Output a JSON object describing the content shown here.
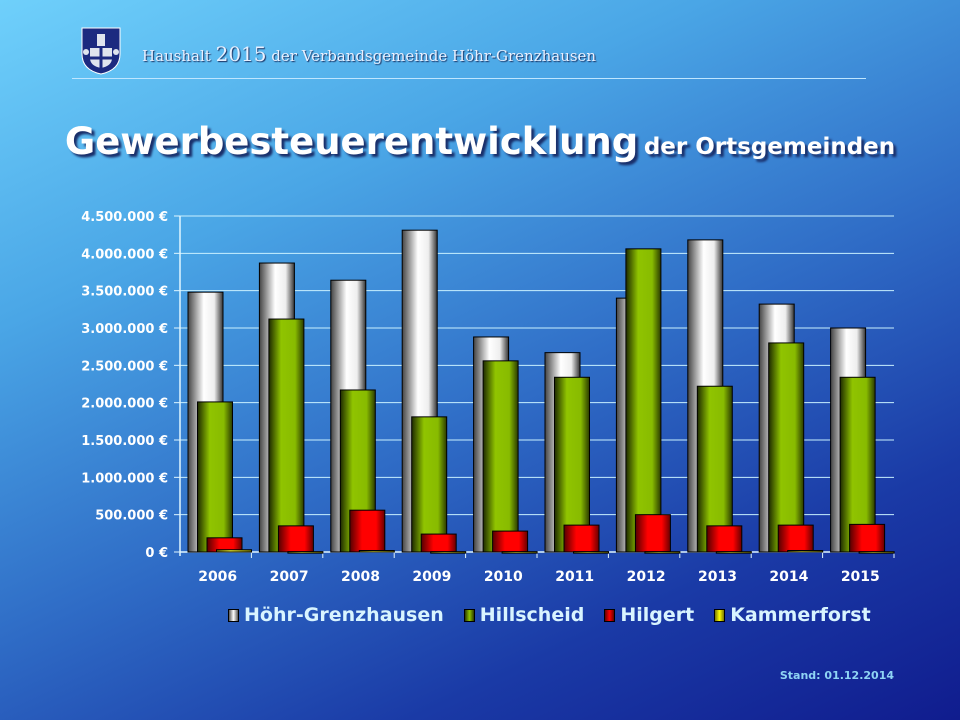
{
  "header": {
    "prefix": "Haushalt",
    "year": "2015",
    "suffix": "der Verbandsgemeinde Höhr-Grenzhausen"
  },
  "title": {
    "main": "Gewerbesteuerentwicklung",
    "sub": "der Ortsgemeinden"
  },
  "footer": {
    "stand": "Stand: 01.12.2014"
  },
  "chart_data": {
    "type": "bar",
    "title": "Gewerbesteuerentwicklung der Ortsgemeinden",
    "xlabel": "",
    "ylabel": "",
    "ylim": [
      0,
      4500000
    ],
    "y_ticks": [
      0,
      500000,
      1000000,
      1500000,
      2000000,
      2500000,
      3000000,
      3500000,
      4000000,
      4500000
    ],
    "y_tick_labels": [
      "0 €",
      "500.000 €",
      "1.000.000 €",
      "1.500.000 €",
      "2.000.000 €",
      "2.500.000 €",
      "3.000.000 €",
      "3.500.000 €",
      "4.000.000 €",
      "4.500.000 €"
    ],
    "categories": [
      "2006",
      "2007",
      "2008",
      "2009",
      "2010",
      "2011",
      "2012",
      "2013",
      "2014",
      "2015"
    ],
    "grid": true,
    "legend_position": "bottom",
    "series": [
      {
        "name": "Höhr-Grenzhausen",
        "color": "#ffffff",
        "values": [
          3480000,
          3870000,
          3640000,
          4310000,
          2880000,
          2670000,
          3400000,
          4180000,
          3320000,
          3000000
        ]
      },
      {
        "name": "Hillscheid",
        "color": "#8cc000",
        "values": [
          2010000,
          3120000,
          2170000,
          1810000,
          2560000,
          2340000,
          4060000,
          2220000,
          2800000,
          2340000
        ]
      },
      {
        "name": "Hilgert",
        "color": "#ff0000",
        "values": [
          190000,
          350000,
          560000,
          240000,
          280000,
          360000,
          500000,
          350000,
          360000,
          370000
        ]
      },
      {
        "name": "Kammerforst",
        "color": "#ffff00",
        "values": [
          30000,
          5000,
          20000,
          5000,
          5000,
          5000,
          5000,
          5000,
          20000,
          5000
        ]
      }
    ]
  }
}
